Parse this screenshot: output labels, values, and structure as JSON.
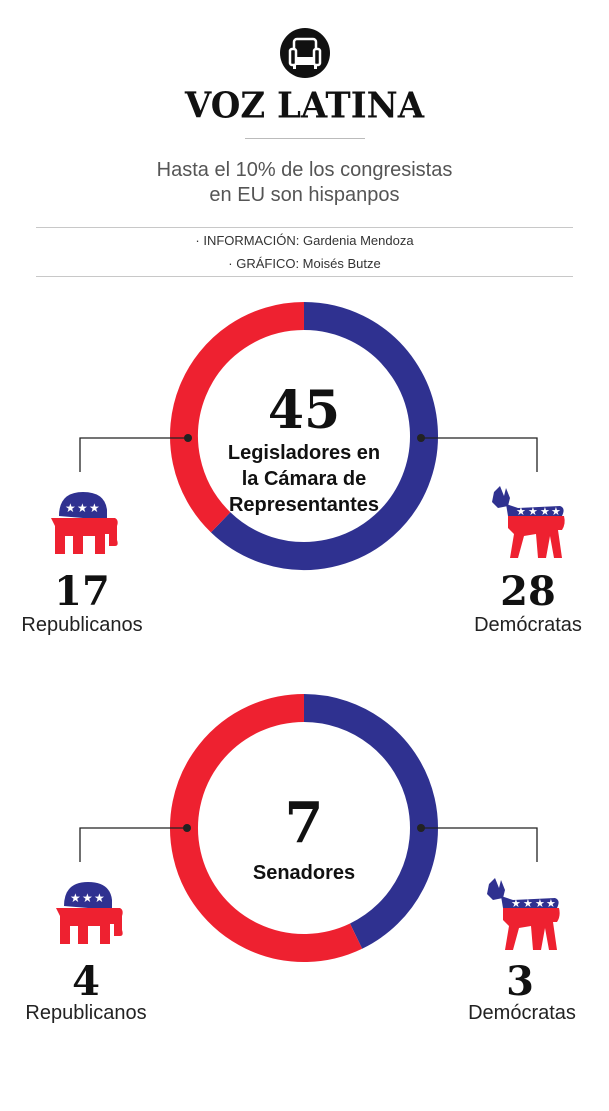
{
  "header": {
    "brand": "VOZ LATINA",
    "subtitle_line1": "Hasta el 10% de los congresistas",
    "subtitle_line2": "en EU son hispanpos",
    "credit_info": "· INFORMACIÓN: Gardenia Mendoza",
    "credit_graphic": "· GRÁFICO: Moisés Butze"
  },
  "colors": {
    "republican": "#ee2130",
    "democrat": "#2f3190",
    "text": "#111111"
  },
  "icons": [
    "armchair-icon",
    "elephant-icon",
    "donkey-icon"
  ],
  "chart_data": [
    {
      "type": "pie",
      "total": 45,
      "title_lines": [
        "Legisladores en",
        "la Cámara de",
        "Representantes"
      ],
      "categories": [
        "Republicanos",
        "Demócratas"
      ],
      "values": [
        17,
        28
      ]
    },
    {
      "type": "pie",
      "total": 7,
      "title_lines": [
        "Senadores"
      ],
      "categories": [
        "Republicanos",
        "Demócratas"
      ],
      "values": [
        4,
        3
      ]
    }
  ]
}
